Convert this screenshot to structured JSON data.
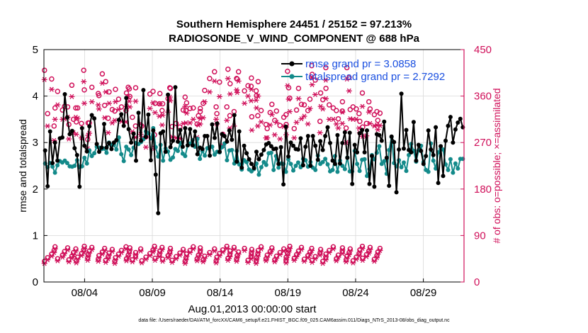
{
  "chart_data": {
    "type": "line",
    "title": "Southern Hemisphere 24451 / 25152 = 97.213%",
    "subtitle": "RADIOSONDE_V_WIND_COMPONENT @ 688 hPa",
    "xlabel": "Aug.01,2013 00:00:00 start",
    "ylabel": "rmse and totalspread",
    "y2label": "# of obs: o=possible; ×=assimilated",
    "footnote": "data file: /Users/raeder/DAI/ATM_forcXX/CAM6_setup/f.e21.FHIST_BGC.f09_025.CAM6assim.011/Diags_NTrS_2013-08/obs_diag_output.nc",
    "xlim": [
      0,
      31
    ],
    "ylim": [
      0,
      5
    ],
    "y2lim": [
      0,
      450
    ],
    "x_ticks": [
      3,
      8,
      13,
      18,
      23,
      28
    ],
    "x_tick_labels": [
      "08/04",
      "08/09",
      "08/14",
      "08/19",
      "08/24",
      "08/29"
    ],
    "y_ticks": [
      "0",
      "1",
      "2",
      "3",
      "4",
      "5"
    ],
    "y2_ticks": [
      "0",
      "90",
      "180",
      "270",
      "360",
      "450"
    ],
    "legend_position": "top-right",
    "series": [
      {
        "name": "rmse grand pr = 3.0858",
        "axis": "left",
        "color": "#000000",
        "marker": "filled-circle",
        "values": [
          2.83,
          2.06,
          3.24,
          2.56,
          3.0,
          2.61,
          3.09,
          3.11,
          4.04,
          3.54,
          3.18,
          3.25,
          2.88,
          2.73,
          2.05,
          3.31,
          2.93,
          2.81,
          3.35,
          3.59,
          3.52,
          2.97,
          2.8,
          2.89,
          3.4,
          2.89,
          2.99,
          2.86,
          3.0,
          3.05,
          3.49,
          3.61,
          3.36,
          3.96,
          3.29,
          3.0,
          3.19,
          2.61,
          3.64,
          3.04,
          4.13,
          3.12,
          3.6,
          2.62,
          3.26,
          2.31,
          1.48,
          3.2,
          3.24,
          2.8,
          4.03,
          2.9,
          3.04,
          4.19,
          3.02,
          3.27,
          2.91,
          3.31,
          2.94,
          3.29,
          2.94,
          3.24,
          2.75,
          2.89,
          2.86,
          3.14,
          3.14,
          2.72,
          3.39,
          3.1,
          3.41,
          2.8,
          3.18,
          3.14,
          3.02,
          3.26,
          3.06,
          3.59,
          2.59,
          3.24,
          2.46,
          2.93,
          2.77,
          2.64,
          2.54,
          2.45,
          2.8,
          2.64,
          2.74,
          2.84,
          2.96,
          2.99,
          2.92,
          2.86,
          2.87,
          2.54,
          2.9,
          2.1,
          3.34,
          2.7,
          3.0,
          2.93,
          2.86,
          2.85,
          3.09,
          2.51,
          2.91,
          3.14,
          2.5,
          3.14,
          2.93,
          2.63,
          3.03,
          2.84,
          3.14,
          3.33,
          2.99,
          2.61,
          2.54,
          3.16,
          2.55,
          2.99,
          3.22,
          2.67,
          3.21,
          2.11,
          2.95,
          2.79,
          3.2,
          3.27,
          2.79,
          3.26,
          2.11,
          2.71,
          2.05,
          3.18,
          3.16,
          3.04,
          3.45,
          2.67,
          2.07,
          3.13,
          3.01,
          1.93,
          2.85,
          4.05,
          2.87,
          3.27,
          2.84,
          2.79,
          3.44,
          2.61,
          2.95,
          2.82,
          2.54,
          2.71,
          3.26,
          2.85,
          2.73,
          3.33,
          2.13,
          2.92,
          2.28,
          3.04,
          3.36,
          3.55,
          3.0,
          3.28,
          3.43,
          3.51,
          3.33
        ]
      },
      {
        "name": "totalspread grand pr = 2.7292",
        "axis": "left",
        "color": "#138a8a",
        "marker": "filled-circle",
        "values": [
          2.55,
          2.47,
          2.56,
          2.48,
          2.35,
          2.51,
          2.6,
          2.57,
          2.61,
          2.56,
          2.49,
          2.48,
          2.5,
          2.62,
          2.47,
          2.49,
          2.67,
          2.55,
          2.83,
          2.71,
          2.77,
          2.91,
          2.89,
          2.86,
          2.87,
          2.78,
          3.0,
          2.95,
          2.95,
          2.85,
          3.11,
          2.75,
          2.6,
          2.91,
          2.85,
          2.73,
          2.89,
          2.99,
          2.97,
          3.01,
          3.07,
          3.24,
          3.2,
          3.09,
          3.31,
          2.9,
          2.7,
          2.95,
          2.61,
          2.87,
          2.81,
          2.63,
          2.68,
          2.86,
          2.82,
          2.99,
          2.76,
          2.71,
          2.94,
          2.98,
          3.05,
          2.91,
          3.08,
          2.65,
          2.82,
          2.72,
          2.88,
          2.9,
          2.91,
          2.74,
          2.8,
          2.79,
          2.9,
          2.98,
          2.62,
          2.83,
          2.84,
          2.55,
          2.82,
          2.53,
          2.42,
          2.62,
          2.58,
          2.42,
          2.38,
          2.43,
          2.55,
          2.31,
          2.47,
          2.58,
          2.52,
          2.77,
          2.78,
          2.41,
          2.71,
          2.46,
          2.55,
          2.54,
          2.37,
          2.64,
          2.54,
          2.4,
          2.5,
          2.57,
          2.47,
          2.65,
          2.62,
          2.48,
          2.58,
          2.46,
          2.41,
          2.72,
          2.54,
          2.58,
          2.65,
          2.53,
          2.38,
          2.41,
          2.71,
          2.37,
          2.61,
          2.5,
          2.43,
          2.68,
          2.38,
          2.38,
          2.82,
          2.54,
          2.39,
          2.63,
          2.64,
          2.28,
          2.43,
          2.73,
          2.64,
          2.78,
          2.92,
          2.54,
          2.6,
          2.33,
          2.84,
          3.12,
          2.56,
          2.49,
          2.62,
          2.47,
          2.57,
          2.39,
          2.73,
          2.97,
          2.82,
          2.59,
          2.83,
          2.93,
          2.58,
          2.41,
          2.37,
          2.98,
          2.61,
          2.44,
          2.79,
          2.86,
          2.85,
          2.53,
          2.41,
          2.64,
          2.35,
          2.55,
          2.44,
          2.65,
          2.65
        ]
      },
      {
        "name": "obs possible",
        "axis": "right",
        "color": "#d0105a",
        "marker": "open-circle",
        "values": [
          410,
          326,
          393,
          302,
          337,
          369,
          333,
          340,
          339,
          305,
          381,
          315,
          337,
          310,
          337,
          307,
          410,
          372,
          276,
          308,
          308,
          377,
          365,
          361,
          403,
          342,
          388,
          317,
          368,
          334,
          331,
          373,
          354,
          339,
          332,
          366,
          377,
          374,
          359,
          319,
          302,
          376,
          304,
          302,
          281,
          364,
          369,
          285,
          346,
          345,
          365,
          332,
          345,
          355,
          376,
          375,
          301,
          307,
          300,
          333,
          358,
          332,
          347,
          336,
          337,
          306,
          322,
          330,
          336,
          346,
          371,
          394,
          407,
          339,
          326,
          387,
          286,
          339,
          412,
          322,
          384,
          330,
          394,
          393,
          407,
          370,
          380,
          379,
          395,
          320,
          370,
          361,
          322,
          388,
          332,
          305,
          297,
          328,
          344,
          313,
          331,
          303,
          319,
          324,
          305,
          408,
          376,
          356,
          297,
          333,
          375,
          344,
          343,
          332,
          354,
          419,
          402,
          391,
          311,
          366,
          353,
          415,
          375,
          343,
          337,
          332,
          316,
          331,
          349,
          298,
          415,
          396,
          334,
          339,
          335,
          326,
          311,
          366,
          300,
          307,
          349,
          335,
          324,
          330,
          313,
          327
        ],
        "times": [
          0.04,
          0.27,
          0.57,
          0.75,
          0.82,
          1.01,
          1.37,
          1.52,
          1.75,
          1.84,
          2.06,
          2.18,
          2.35,
          2.39,
          2.49,
          2.77,
          2.94,
          2.98,
          3.23,
          3.26,
          3.35,
          3.54,
          4.01,
          4.06,
          4.31,
          4.48,
          4.56,
          4.74,
          4.81,
          5.04,
          5.23,
          5.28,
          5.51,
          5.72,
          6.06,
          6.09,
          6.22,
          6.3,
          6.34,
          6.53,
          6.76,
          6.77,
          7.14,
          7.22,
          7.53,
          7.82,
          8.05,
          8.16,
          8.2,
          8.52,
          8.56,
          8.72,
          8.76,
          9.16,
          9.29,
          9.33,
          9.46,
          9.76,
          10.03,
          10.28,
          10.42,
          10.48,
          10.53,
          10.78,
          11.02,
          11.3,
          11.4,
          11.53,
          11.54,
          11.75,
          11.86,
          12.23,
          12.59,
          12.71,
          12.76,
          12.96,
          13.2,
          13.5,
          13.58,
          13.72,
          13.74,
          14.03,
          14.22,
          14.26,
          14.36,
          14.8,
          15.06,
          15.29,
          15.31,
          15.34,
          15.66,
          15.69,
          15.78,
          15.81,
          16.03,
          16.39,
          16.48,
          16.69,
          16.82,
          17.03,
          17.16,
          17.42,
          17.7,
          17.87,
          17.88,
          17.98,
          18.06,
          18.14,
          18.47,
          18.64,
          18.79,
          19.0,
          19.21,
          19.48,
          19.63,
          19.76,
          19.79,
          20.02,
          20.37,
          20.42,
          20.58,
          20.8,
          20.81,
          21.05,
          21.35,
          21.58,
          21.72,
          22.02,
          22.03,
          22.3,
          22.36,
          22.52,
          22.6,
          22.81,
          23.05,
          23.25,
          23.31,
          23.5,
          23.52,
          23.8,
          23.98,
          24.07,
          24.38,
          24.57,
          24.64,
          24.8
        ]
      }
    ]
  }
}
